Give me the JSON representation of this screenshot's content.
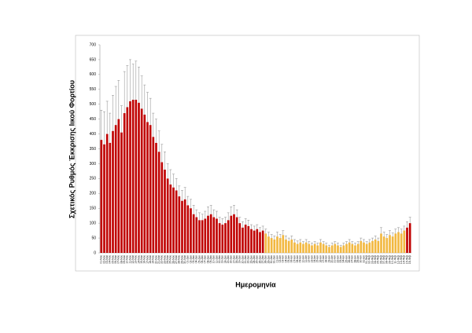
{
  "chart_data": {
    "type": "bar",
    "y_label": "Σχετικός Ρυθμός Έκκρισης Ιικού Φορτίου",
    "x_label": "Ημερομηνία",
    "categories": [
      "01-Νοε",
      "02-Νοε",
      "03-Νοε",
      "04-Νοε",
      "05-Νοε",
      "06-Νοε",
      "07-Νοε",
      "08-Νοε",
      "09-Νοε",
      "10-Νοε",
      "11-Νοε",
      "12-Νοε",
      "13-Νοε",
      "14-Νοε",
      "15-Νοε",
      "16-Νοε",
      "17-Νοε",
      "18-Νοε",
      "19-Νοε",
      "20-Νοε",
      "21-Νοε",
      "22-Νοε",
      "23-Νοε",
      "24-Νοε",
      "25-Νοε",
      "26-Νοε",
      "27-Νοε",
      "28-Νοε",
      "29-Νοε",
      "30-Νοε",
      "01-Δεκ",
      "02-Δεκ",
      "03-Δεκ",
      "04-Δεκ",
      "05-Δεκ",
      "06-Δεκ",
      "07-Δεκ",
      "08-Δεκ",
      "09-Δεκ",
      "10-Δεκ",
      "11-Δεκ",
      "12-Δεκ",
      "13-Δεκ",
      "14-Δεκ",
      "15-Δεκ",
      "16-Δεκ",
      "17-Δεκ",
      "18-Δεκ",
      "19-Δεκ",
      "20-Δεκ",
      "21-Δεκ",
      "22-Δεκ",
      "23-Δεκ",
      "24-Δεκ",
      "25-Δεκ",
      "26-Δεκ",
      "27-Δεκ",
      "28-Δεκ",
      "29-Δεκ",
      "30-Δεκ",
      "31-Δεκ",
      "01-Ιαν",
      "02-Ιαν",
      "03-Ιαν",
      "04-Ιαν",
      "05-Ιαν",
      "06-Ιαν",
      "07-Ιαν",
      "08-Ιαν",
      "09-Ιαν",
      "10-Ιαν",
      "11-Ιαν",
      "12-Ιαν",
      "13-Ιαν",
      "14-Ιαν",
      "15-Ιαν",
      "16-Ιαν",
      "17-Ιαν",
      "18-Ιαν",
      "19-Ιαν",
      "20-Ιαν",
      "21-Ιαν",
      "22-Ιαν",
      "23-Ιαν",
      "24-Ιαν",
      "25-Ιαν",
      "26-Ιαν",
      "27-Ιαν",
      "28-Ιαν",
      "29-Ιαν",
      "30-Ιαν",
      "31-Ιαν",
      "01-Φεβ",
      "02-Φεβ",
      "03-Φεβ",
      "04-Φεβ",
      "05-Φεβ",
      "06-Φεβ",
      "07-Φεβ",
      "08-Φεβ",
      "09-Φεβ",
      "10-Φεβ",
      "11-Φεβ",
      "12-Φεβ",
      "13-Φεβ",
      "14-Φεβ",
      "15-Φεβ",
      "16-Φεβ"
    ],
    "series": [
      {
        "color": "#c00000",
        "values": [
          380,
          365,
          400,
          370,
          410,
          430,
          450,
          405,
          470,
          490,
          510,
          515,
          515,
          505,
          485,
          465,
          440,
          430,
          390,
          370,
          340,
          305,
          280,
          250,
          230,
          220,
          210,
          190,
          175,
          180,
          160,
          150,
          130,
          120,
          110,
          110,
          115,
          125,
          130,
          120,
          115,
          100,
          95,
          100,
          110,
          125,
          130,
          120,
          100,
          85,
          95,
          90,
          80,
          75,
          80,
          70,
          75,
          null,
          null,
          null,
          null,
          null,
          null,
          null,
          null,
          null,
          null,
          null,
          null,
          null,
          null,
          null,
          null,
          null,
          null,
          null,
          null,
          null,
          null,
          null,
          null,
          null,
          null,
          null,
          null,
          null,
          null,
          null,
          null,
          null,
          null,
          null,
          null,
          null,
          null,
          null,
          null,
          null,
          null,
          null,
          null,
          null,
          null,
          null,
          null,
          null,
          85,
          100
        ],
        "errors": [
          100,
          110,
          110,
          100,
          120,
          130,
          130,
          90,
          140,
          140,
          140,
          120,
          130,
          120,
          110,
          100,
          100,
          90,
          80,
          80,
          70,
          60,
          60,
          50,
          50,
          45,
          40,
          35,
          35,
          40,
          30,
          30,
          30,
          25,
          25,
          20,
          25,
          30,
          30,
          25,
          25,
          20,
          20,
          20,
          25,
          30,
          30,
          25,
          20,
          20,
          20,
          20,
          15,
          15,
          15,
          15,
          15,
          null,
          null,
          null,
          null,
          null,
          null,
          null,
          null,
          null,
          null,
          null,
          null,
          null,
          null,
          null,
          null,
          null,
          null,
          null,
          null,
          null,
          null,
          null,
          null,
          null,
          null,
          null,
          null,
          null,
          null,
          null,
          null,
          null,
          null,
          null,
          null,
          null,
          null,
          null,
          null,
          null,
          null,
          null,
          null,
          null,
          null,
          null,
          null,
          null,
          20,
          20
        ]
      },
      {
        "color": "#f2b840",
        "values": [
          null,
          null,
          null,
          null,
          null,
          null,
          null,
          null,
          null,
          null,
          null,
          null,
          null,
          null,
          null,
          null,
          null,
          null,
          null,
          null,
          null,
          null,
          null,
          null,
          null,
          null,
          null,
          null,
          null,
          null,
          null,
          null,
          null,
          null,
          null,
          null,
          null,
          null,
          null,
          null,
          null,
          null,
          null,
          null,
          null,
          null,
          null,
          null,
          null,
          null,
          null,
          null,
          null,
          null,
          null,
          null,
          null,
          65,
          55,
          50,
          45,
          55,
          50,
          60,
          45,
          40,
          45,
          35,
          30,
          35,
          30,
          35,
          30,
          25,
          30,
          25,
          35,
          30,
          25,
          20,
          25,
          30,
          25,
          20,
          25,
          30,
          35,
          30,
          25,
          30,
          40,
          35,
          30,
          35,
          40,
          45,
          40,
          65,
          55,
          50,
          60,
          55,
          65,
          70,
          65,
          75,
          null,
          null
        ],
        "errors": [
          null,
          null,
          null,
          null,
          null,
          null,
          null,
          null,
          null,
          null,
          null,
          null,
          null,
          null,
          null,
          null,
          null,
          null,
          null,
          null,
          null,
          null,
          null,
          null,
          null,
          null,
          null,
          null,
          null,
          null,
          null,
          null,
          null,
          null,
          null,
          null,
          null,
          null,
          null,
          null,
          null,
          null,
          null,
          null,
          null,
          null,
          null,
          null,
          null,
          null,
          null,
          null,
          null,
          null,
          null,
          null,
          null,
          15,
          15,
          12,
          12,
          15,
          12,
          15,
          12,
          10,
          12,
          10,
          10,
          10,
          8,
          10,
          8,
          8,
          8,
          8,
          10,
          8,
          8,
          6,
          8,
          8,
          8,
          6,
          8,
          8,
          10,
          8,
          8,
          8,
          10,
          10,
          8,
          10,
          10,
          12,
          10,
          20,
          15,
          12,
          15,
          12,
          15,
          15,
          15,
          15,
          null,
          null
        ]
      }
    ],
    "ylim": [
      0,
      700
    ],
    "yticks": [
      0,
      50,
      100,
      150,
      200,
      250,
      300,
      350,
      400,
      450,
      500,
      550,
      600,
      650,
      700
    ],
    "grid": false
  }
}
